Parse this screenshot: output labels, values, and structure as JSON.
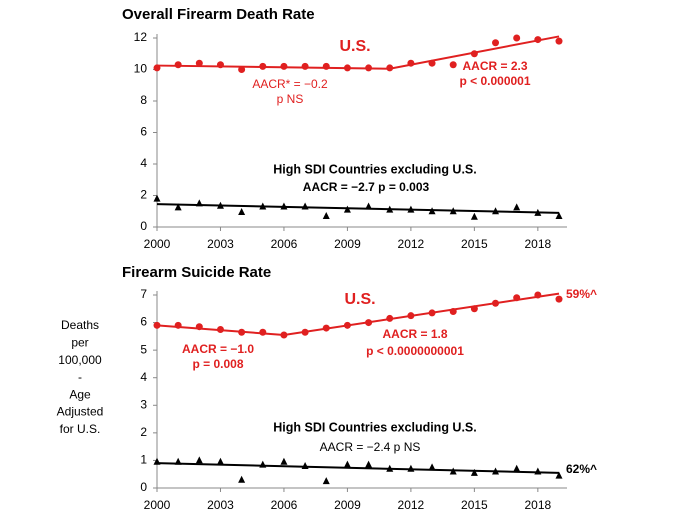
{
  "y_axis_label": [
    "Deaths",
    "per",
    "100,000",
    "-",
    "Age",
    "Adjusted",
    "for U.S."
  ],
  "chart_data": [
    {
      "type": "line",
      "title": "Overall Firearm Death Rate",
      "x": [
        2000,
        2001,
        2002,
        2003,
        2004,
        2005,
        2006,
        2007,
        2008,
        2009,
        2010,
        2011,
        2012,
        2013,
        2014,
        2015,
        2016,
        2017,
        2018,
        2019
      ],
      "series": [
        {
          "name": "U.S.",
          "color": "#e02020",
          "marker": "circle",
          "values": [
            10.1,
            10.3,
            10.4,
            10.3,
            10.0,
            10.2,
            10.2,
            10.2,
            10.2,
            10.1,
            10.1,
            10.1,
            10.4,
            10.4,
            10.3,
            11.0,
            11.7,
            12.0,
            11.9,
            11.8
          ],
          "trend": {
            "x": [
              2000,
              2011,
              2019
            ],
            "values": [
              10.25,
              10.05,
              12.1
            ]
          }
        },
        {
          "name": "High SDI Countries excluding U.S.",
          "color": "#000000",
          "marker": "triangle",
          "values": [
            1.8,
            1.25,
            1.5,
            1.35,
            0.95,
            1.3,
            1.3,
            1.3,
            0.7,
            1.1,
            1.3,
            1.1,
            1.1,
            1.0,
            1.0,
            0.65,
            1.0,
            1.25,
            0.9,
            0.7
          ],
          "trend": {
            "x": [
              2000,
              2019
            ],
            "values": [
              1.45,
              0.9
            ]
          }
        }
      ],
      "annotations": [
        "AACR* = −0.2",
        "p NS",
        "AACR = 2.3",
        "p < 0.000001",
        "AACR = −2.7  p = 0.003"
      ],
      "xlim": [
        2000,
        2019
      ],
      "xticks": [
        2000,
        2003,
        2006,
        2009,
        2012,
        2015,
        2018
      ],
      "ylim": [
        0,
        12
      ],
      "yticks": [
        0,
        2,
        4,
        6,
        8,
        10,
        12
      ]
    },
    {
      "type": "line",
      "title": "Firearm Suicide Rate",
      "x": [
        2000,
        2001,
        2002,
        2003,
        2004,
        2005,
        2006,
        2007,
        2008,
        2009,
        2010,
        2011,
        2012,
        2013,
        2014,
        2015,
        2016,
        2017,
        2018,
        2019
      ],
      "series": [
        {
          "name": "U.S.",
          "color": "#e02020",
          "marker": "circle",
          "values": [
            5.9,
            5.9,
            5.85,
            5.75,
            5.65,
            5.65,
            5.55,
            5.65,
            5.8,
            5.9,
            6.0,
            6.15,
            6.25,
            6.35,
            6.4,
            6.5,
            6.7,
            6.9,
            7.0,
            6.85
          ],
          "trend": {
            "x": [
              2000,
              2006,
              2019
            ],
            "values": [
              5.9,
              5.55,
              7.05
            ]
          }
        },
        {
          "name": "High SDI Countries excluding U.S.",
          "color": "#000000",
          "marker": "triangle",
          "values": [
            0.95,
            0.95,
            1.0,
            0.95,
            0.3,
            0.85,
            0.95,
            0.8,
            0.25,
            0.85,
            0.85,
            0.7,
            0.7,
            0.75,
            0.6,
            0.55,
            0.6,
            0.7,
            0.6,
            0.45
          ],
          "trend": {
            "x": [
              2000,
              2019
            ],
            "values": [
              0.9,
              0.55
            ]
          }
        }
      ],
      "annotations": [
        "59%^",
        "AACR = −1.0",
        "p = 0.008",
        "AACR = 1.8",
        "p < 0.0000000001",
        "AACR = −2.4  p NS",
        "62%^"
      ],
      "xlim": [
        2000,
        2019
      ],
      "xticks": [
        2000,
        2003,
        2006,
        2009,
        2012,
        2015,
        2018
      ],
      "ylim": [
        0,
        7
      ],
      "yticks": [
        0,
        1,
        2,
        3,
        4,
        5,
        6,
        7
      ]
    }
  ]
}
